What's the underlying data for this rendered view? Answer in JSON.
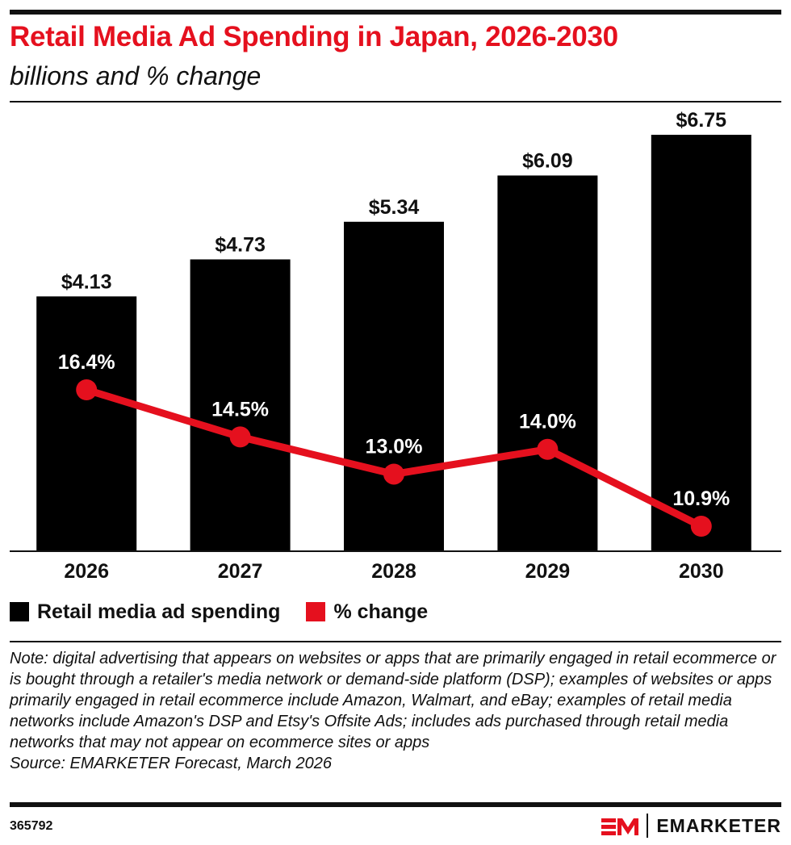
{
  "header": {
    "title": "Retail Media Ad Spending in Japan, 2026-2030",
    "subtitle": "billions and % change"
  },
  "chart_data": {
    "type": "bar",
    "categories": [
      "2026",
      "2027",
      "2028",
      "2029",
      "2030"
    ],
    "series": [
      {
        "name": "Retail media ad spending",
        "type": "bar",
        "values": [
          4.13,
          4.73,
          5.34,
          6.09,
          6.75
        ],
        "labels": [
          "$4.13",
          "$4.73",
          "$5.34",
          "$6.09",
          "$6.75"
        ],
        "color": "#000000"
      },
      {
        "name": "% change",
        "type": "line",
        "values": [
          16.4,
          14.5,
          13.0,
          14.0,
          10.9
        ],
        "labels": [
          "16.4%",
          "14.5%",
          "13.0%",
          "14.0%",
          "10.9%"
        ],
        "color": "#e5101e"
      }
    ],
    "grid": false,
    "legend": "bottom-left"
  },
  "legend": {
    "items": [
      {
        "label": "Retail media ad spending",
        "color": "#000000"
      },
      {
        "label": "% change",
        "color": "#e5101e"
      }
    ]
  },
  "footer": {
    "note": "Note: digital advertising that appears on websites or apps that are primarily engaged in retail ecommerce or is bought through a retailer's media network or demand-side platform (DSP); examples of websites or apps primarily engaged in retail ecommerce include Amazon, Walmart, and eBay; examples of retail media networks include Amazon's DSP and Etsy's Offsite Ads; includes ads purchased through retail media networks that may not appear on ecommerce sites or apps",
    "source": "Source: EMARKETER Forecast, March 2026",
    "chart_id": "365792",
    "brand": "EMARKETER"
  },
  "colors": {
    "accent": "#e5101e",
    "ink": "#111111"
  }
}
